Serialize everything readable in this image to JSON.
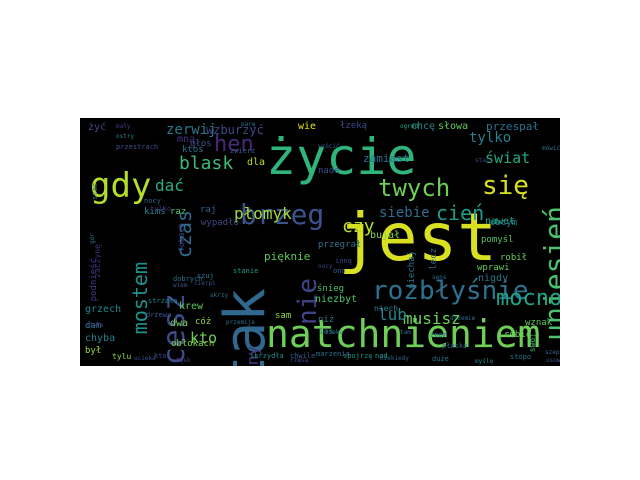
{
  "word_cloud": {
    "colors": {
      "yellow": "#d9e021",
      "lime": "#a0da39",
      "green": "#4ac16d",
      "teal": "#1fa187",
      "cyan": "#277f8e",
      "blue": "#365c8d",
      "indigo": "#46327e",
      "purple": "#440154"
    },
    "words": [
      {
        "text": "życie",
        "color": "#2fb47c"
      },
      {
        "text": "jest",
        "color": "#d9e021"
      },
      {
        "text": "tak",
        "color": "#31688e"
      },
      {
        "text": "natchnieniem",
        "color": "#6ece58"
      },
      {
        "text": "gdy",
        "color": "#b5de2b"
      },
      {
        "text": "chcesz",
        "color": "#3e4a89"
      },
      {
        "text": "mostem",
        "color": "#20928c"
      },
      {
        "text": "brzeg",
        "color": "#3b528b"
      },
      {
        "text": "uniesień",
        "color": "#4ac16d"
      },
      {
        "text": "się",
        "color": "#d9e021"
      },
      {
        "text": "twych",
        "color": "#6ece58"
      },
      {
        "text": "rozbłyśnie",
        "color": "#2c728e"
      },
      {
        "text": "nie",
        "color": "#404387"
      },
      {
        "text": "hen",
        "color": "#482878"
      },
      {
        "text": "mocno",
        "color": "#20a386"
      },
      {
        "text": "czas",
        "color": "#31688e"
      },
      {
        "text": "blask",
        "color": "#3bbb75"
      },
      {
        "text": "cień",
        "color": "#1f9e89"
      },
      {
        "text": "wieczny",
        "color": "#46327e"
      },
      {
        "text": "czy",
        "color": "#b8de29"
      },
      {
        "text": "płomyk",
        "color": "#9fda3a"
      },
      {
        "text": "dać",
        "color": "#29af7f"
      },
      {
        "text": "zerwij",
        "color": "#2a788e"
      },
      {
        "text": "musisz",
        "color": "#6ece58"
      },
      {
        "text": "lub",
        "color": "#26828e"
      },
      {
        "text": "tylko",
        "color": "#26828e"
      },
      {
        "text": "świat",
        "color": "#22a884"
      },
      {
        "text": "siebie",
        "color": "#2e6e8e"
      },
      {
        "text": "kto",
        "color": "#6ccd5a"
      },
      {
        "text": "wzburzyć",
        "color": "#404588"
      },
      {
        "text": "przespał",
        "color": "#2c728e"
      },
      {
        "text": "chcę",
        "color": "#24878e"
      },
      {
        "text": "słowa",
        "color": "#63cb5f"
      },
      {
        "text": "wie",
        "color": "#e5e419"
      },
      {
        "text": "zamiast",
        "color": "#2c718e"
      },
      {
        "text": "żyć",
        "color": "#3e4c8a"
      },
      {
        "text": "krew",
        "color": "#5ec962"
      },
      {
        "text": "pięknie",
        "color": "#63cb5f"
      },
      {
        "text": "dwa",
        "color": "#7ad151"
      },
      {
        "text": "obłokach",
        "color": "#86d549"
      },
      {
        "text": "nigdy",
        "color": "#2a778e"
      },
      {
        "text": "niezbyt",
        "color": "#4ec36b"
      },
      {
        "text": "dla",
        "color": "#b8de29"
      },
      {
        "text": "bujał",
        "color": "#83d34b"
      },
      {
        "text": "przegrał",
        "color": "#2e6f8e"
      },
      {
        "text": "grzech",
        "color": "#25848e"
      },
      {
        "text": "chyba",
        "color": "#27808e"
      },
      {
        "text": "dam",
        "color": "#2a768e"
      },
      {
        "text": "był",
        "color": "#9bd93c"
      },
      {
        "text": "tylu",
        "color": "#8bd646"
      },
      {
        "text": "robić",
        "color": "#6ccd5a"
      },
      {
        "text": "wznak",
        "color": "#5ec962"
      },
      {
        "text": "wprawi",
        "color": "#63cb5f"
      },
      {
        "text": "nawet",
        "color": "#22a785"
      },
      {
        "text": "robił",
        "color": "#6ccd5a"
      },
      {
        "text": "pomyśl",
        "color": "#56c667"
      },
      {
        "text": "obcym",
        "color": "#25858e"
      },
      {
        "text": "sam",
        "color": "#8fd744"
      },
      {
        "text": "śnieg",
        "color": "#4ac16d"
      },
      {
        "text": "niech",
        "color": "#277f8e"
      },
      {
        "text": "cóż",
        "color": "#8fd744"
      },
      {
        "text": "mną",
        "color": "#46317e"
      },
      {
        "text": "ktoś",
        "color": "#2c718e"
      },
      {
        "text": "niż",
        "color": "#2a788e"
      },
      {
        "text": "los",
        "color": "#2b758e"
      },
      {
        "text": "znam",
        "color": "#287d8e"
      },
      {
        "text": "swój",
        "color": "#3aba76"
      },
      {
        "text": "raz",
        "color": "#4dc36b"
      },
      {
        "text": "kimś",
        "color": "#24868e"
      },
      {
        "text": "nade",
        "color": "#3c4f8a"
      },
      {
        "text": "łzeką",
        "color": "#3e4989"
      },
      {
        "text": "lecz",
        "color": "#31688e"
      },
      {
        "text": "niechaj",
        "color": "#2d708e"
      },
      {
        "text": "podnieść",
        "color": "#443983"
      },
      {
        "text": "zaczynę",
        "color": "#472d7b"
      },
      {
        "text": "raj",
        "color": "#34618d"
      },
      {
        "text": "fokach",
        "color": "#3e4a89"
      },
      {
        "text": "przestrach",
        "color": "#3b528b"
      },
      {
        "text": "wypadło",
        "color": "#3f4788"
      },
      {
        "text": "głos",
        "color": "#3b528b"
      },
      {
        "text": "zwierz",
        "color": "#39568c"
      },
      {
        "text": "nocy",
        "color": "#355f8d"
      },
      {
        "text": "stopo",
        "color": "#2a788e"
      },
      {
        "text": "skrzydła",
        "color": "#20928c"
      },
      {
        "text": "spojrzę",
        "color": "#1f988b"
      },
      {
        "text": "chwile",
        "color": "#34618d"
      },
      {
        "text": "ktoś",
        "color": "#3d4e8a"
      },
      {
        "text": "tęsk",
        "color": "#433e85"
      },
      {
        "text": "nad",
        "color": "#1fa088"
      },
      {
        "text": "rzęsą",
        "color": "#3e4a89"
      },
      {
        "text": "strzała",
        "color": "#25848e"
      },
      {
        "text": "duże",
        "color": "#2c728e"
      },
      {
        "text": "płasko",
        "color": "#31688e"
      },
      {
        "text": "mówić",
        "color": "#2d708e"
      },
      {
        "text": "ogród",
        "color": "#22a884"
      },
      {
        "text": "stać",
        "color": "#2f6c8e"
      },
      {
        "text": "myślę",
        "color": "#2a778e"
      },
      {
        "text": "ostry",
        "color": "#287c8e"
      },
      {
        "text": "stanie",
        "color": "#1f9a8a"
      },
      {
        "text": "czuj",
        "color": "#29798e"
      },
      {
        "text": "jedno",
        "color": "#25838e"
      },
      {
        "text": "inną",
        "color": "#3f4788"
      },
      {
        "text": "ono",
        "color": "#34608d"
      },
      {
        "text": "cierpi",
        "color": "#3a548c"
      },
      {
        "text": "parę",
        "color": "#2a788e"
      },
      {
        "text": "tam",
        "color": "#2e6f8e"
      },
      {
        "text": "skrzy",
        "color": "#2c728e"
      },
      {
        "text": "drzewa",
        "color": "#39568c"
      },
      {
        "text": "zdoła",
        "color": "#433e85"
      },
      {
        "text": "dobrych",
        "color": "#2d708e"
      },
      {
        "text": "wiem",
        "color": "#3b528b"
      },
      {
        "text": "gór",
        "color": "#2a768e"
      },
      {
        "text": "mały",
        "color": "#453882"
      },
      {
        "text": "przemija",
        "color": "#2e6e8e"
      },
      {
        "text": "wrócić",
        "color": "#34608d"
      },
      {
        "text": "tylko",
        "color": "#472c7a"
      },
      {
        "text": "nocy",
        "color": "#3e4989"
      },
      {
        "text": "ucieka",
        "color": "#3b528b"
      },
      {
        "text": "marzenia",
        "color": "#2c718e"
      },
      {
        "text": "niekiedy",
        "color": "#34608d"
      },
      {
        "text": "szepce",
        "color": "#31688e"
      },
      {
        "text": "myślę",
        "color": "#25848e"
      },
      {
        "text": "usuwa",
        "color": "#375a8c"
      },
      {
        "text": "rzeka",
        "color": "#2a788e"
      },
      {
        "text": "sens",
        "color": "#2d718e"
      },
      {
        "text": "stać",
        "color": "#3f4788"
      },
      {
        "text": "drzemie",
        "color": "#2c728e"
      }
    ]
  }
}
